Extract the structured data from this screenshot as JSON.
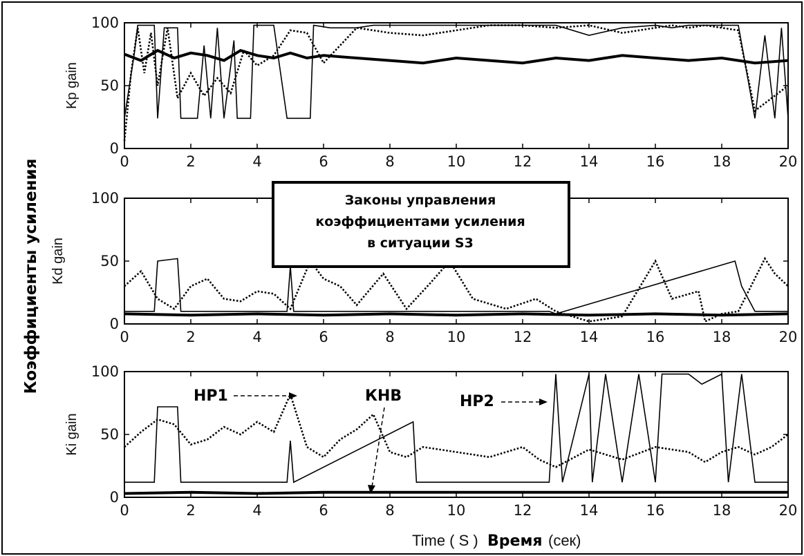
{
  "figure": {
    "ylabel": "Коэффициенты  усиления",
    "xlabel_en": "Time ( S )",
    "xlabel_ru_bold": "Время",
    "xlabel_ru_unit": "(сек)",
    "box_lines": [
      "Законы управления",
      "коэффициентами усиления",
      "в ситуации S3"
    ]
  },
  "annotations": [
    "НР1",
    "КНВ",
    "НР2"
  ],
  "chart_data": [
    {
      "type": "line",
      "ylabel": "Kp gain",
      "xlim": [
        0,
        20
      ],
      "ylim": [
        0,
        100
      ],
      "x_ticks": [
        "0",
        "2",
        "4",
        "6",
        "8",
        "10",
        "12",
        "14",
        "16",
        "18",
        "20"
      ],
      "y_ticks": [
        "0",
        "50",
        "100"
      ],
      "series": [
        {
          "style": "solid-thin",
          "x": [
            0,
            0.3,
            0.4,
            0.9,
            1.0,
            1.2,
            1.6,
            1.7,
            2.2,
            2.4,
            2.6,
            2.8,
            3.0,
            3.3,
            3.4,
            3.8,
            3.9,
            4.5,
            4.9,
            5.0,
            5.6,
            5.7,
            6.2,
            7.0,
            7.5,
            8.5,
            9.5,
            12.0,
            13.0,
            14.0,
            15.0,
            16.0,
            16.5,
            17.0,
            17.5,
            18.5,
            19.0,
            19.3,
            19.6,
            19.8,
            20
          ],
          "y": [
            24,
            76,
            98,
            98,
            24,
            96,
            96,
            24,
            24,
            82,
            24,
            96,
            24,
            86,
            24,
            24,
            98,
            98,
            24,
            24,
            24,
            98,
            96,
            96,
            98,
            98,
            98,
            98,
            98,
            90,
            96,
            98,
            96,
            98,
            98,
            98,
            24,
            90,
            24,
            96,
            24
          ]
        },
        {
          "style": "thick",
          "x": [
            0,
            0.5,
            1.0,
            1.5,
            2.0,
            2.5,
            3.0,
            3.5,
            4.0,
            4.5,
            5.0,
            5.5,
            6.0,
            7.0,
            8.0,
            9.0,
            10.0,
            11.0,
            12.0,
            13.0,
            14.0,
            15.0,
            16.0,
            17.0,
            18.0,
            19.0,
            20
          ],
          "y": [
            75,
            70,
            78,
            72,
            76,
            74,
            70,
            78,
            74,
            72,
            76,
            72,
            74,
            72,
            70,
            68,
            72,
            70,
            68,
            72,
            70,
            74,
            72,
            70,
            72,
            68,
            70
          ]
        },
        {
          "style": "dotted",
          "x": [
            0,
            0.2,
            0.4,
            0.6,
            0.8,
            1.0,
            1.3,
            1.6,
            2.0,
            2.4,
            2.8,
            3.2,
            3.6,
            4.0,
            4.5,
            5.0,
            5.5,
            6.0,
            7.0,
            8.0,
            9.0,
            10.0,
            11.0,
            12.0,
            13.0,
            14.0,
            15.0,
            16.0,
            16.5,
            17.0,
            17.5,
            18.0,
            18.5,
            19.0,
            19.5,
            20
          ],
          "y": [
            6,
            60,
            96,
            60,
            92,
            50,
            96,
            40,
            60,
            42,
            56,
            44,
            78,
            66,
            74,
            94,
            92,
            68,
            96,
            92,
            90,
            94,
            98,
            98,
            96,
            98,
            92,
            96,
            98,
            96,
            98,
            96,
            94,
            30,
            40,
            50
          ]
        }
      ]
    },
    {
      "type": "line",
      "ylabel": "Kd gain",
      "xlim": [
        0,
        20
      ],
      "ylim": [
        0,
        100
      ],
      "x_ticks": [
        "0",
        "2",
        "4",
        "6",
        "8",
        "10",
        "12",
        "14",
        "16",
        "18",
        "20"
      ],
      "y_ticks": [
        "0",
        "50",
        "100"
      ],
      "series": [
        {
          "style": "solid-thin",
          "x": [
            0,
            0.9,
            1.0,
            1.6,
            1.7,
            4.9,
            5.0,
            5.1,
            12.8,
            13.0,
            18.4,
            18.6,
            18.8,
            19.0,
            20
          ],
          "y": [
            10,
            10,
            50,
            52,
            10,
            10,
            46,
            10,
            10,
            8,
            50,
            30,
            20,
            10,
            10
          ]
        },
        {
          "style": "thick",
          "x": [
            0,
            2,
            4,
            6,
            8,
            10,
            12,
            14,
            16,
            18,
            20
          ],
          "y": [
            8,
            7,
            8,
            7,
            8,
            7,
            8,
            7,
            8,
            7,
            8
          ]
        },
        {
          "style": "dotted",
          "x": [
            0,
            0.5,
            1.0,
            1.5,
            2.0,
            2.5,
            3.0,
            3.5,
            4.0,
            4.5,
            5.0,
            5.6,
            6.0,
            6.5,
            7.0,
            7.8,
            8.5,
            9.2,
            9.8,
            10.5,
            11.5,
            12.4,
            13.0,
            14.0,
            15.0,
            16.0,
            16.5,
            17.3,
            17.5,
            18.0,
            18.5,
            19.3,
            19.6,
            20
          ],
          "y": [
            30,
            42,
            20,
            12,
            30,
            36,
            20,
            18,
            26,
            24,
            12,
            50,
            36,
            30,
            15,
            40,
            12,
            32,
            50,
            20,
            12,
            20,
            10,
            2,
            6,
            50,
            20,
            26,
            2,
            8,
            10,
            52,
            40,
            30
          ]
        }
      ]
    },
    {
      "type": "line",
      "ylabel": "Ki gain",
      "xlim": [
        0,
        20
      ],
      "ylim": [
        0,
        100
      ],
      "x_ticks": [
        "0",
        "2",
        "4",
        "6",
        "8",
        "10",
        "12",
        "14",
        "16",
        "18",
        "20"
      ],
      "y_ticks": [
        "0",
        "50",
        "100"
      ],
      "series": [
        {
          "style": "solid-thin",
          "x": [
            0,
            0.9,
            1.0,
            1.6,
            1.7,
            4.9,
            5.0,
            5.1,
            8.7,
            8.8,
            12.8,
            13.0,
            13.2,
            14.0,
            14.1,
            14.5,
            15.0,
            15.5,
            16.0,
            16.2,
            17.0,
            17.4,
            18.0,
            18.2,
            18.6,
            19.0,
            19.5,
            20
          ],
          "y": [
            12,
            12,
            72,
            72,
            12,
            12,
            45,
            12,
            60,
            12,
            12,
            98,
            12,
            98,
            12,
            98,
            12,
            98,
            12,
            98,
            98,
            90,
            98,
            12,
            98,
            12,
            12,
            12
          ]
        },
        {
          "style": "thick",
          "x": [
            0,
            2,
            4,
            6,
            8,
            10,
            12,
            14,
            16,
            18,
            20
          ],
          "y": [
            3,
            4,
            3,
            4,
            4,
            4,
            4,
            4,
            4,
            4,
            4
          ]
        },
        {
          "style": "dotted",
          "x": [
            0,
            0.5,
            1.0,
            1.5,
            2.0,
            2.5,
            3.0,
            3.5,
            4.0,
            4.5,
            5.0,
            5.5,
            6.0,
            6.5,
            7.0,
            7.5,
            8.0,
            8.5,
            9.0,
            10.0,
            11.0,
            12.0,
            12.5,
            13.0,
            14.0,
            15.0,
            16.0,
            17.0,
            17.5,
            18.0,
            18.5,
            19.0,
            19.5,
            20
          ],
          "y": [
            40,
            52,
            62,
            58,
            42,
            46,
            56,
            50,
            60,
            52,
            82,
            40,
            32,
            46,
            54,
            66,
            36,
            32,
            40,
            36,
            32,
            40,
            30,
            24,
            38,
            30,
            40,
            36,
            28,
            36,
            40,
            34,
            40,
            50
          ]
        }
      ]
    }
  ]
}
